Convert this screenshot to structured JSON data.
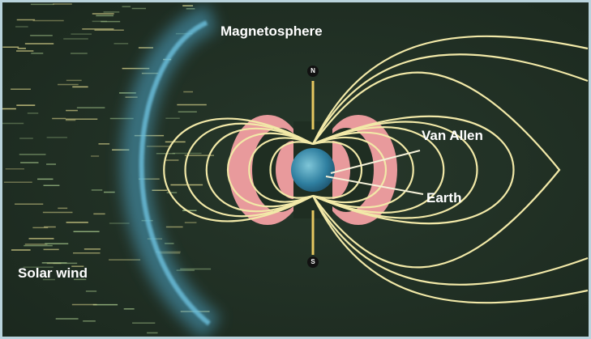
{
  "labels": {
    "magnetosphere": "Magnetosphere",
    "van_allen": "Van Allen",
    "earth": "Earth",
    "solar_wind": "Solar wind",
    "north": "N",
    "south": "S"
  }
}
